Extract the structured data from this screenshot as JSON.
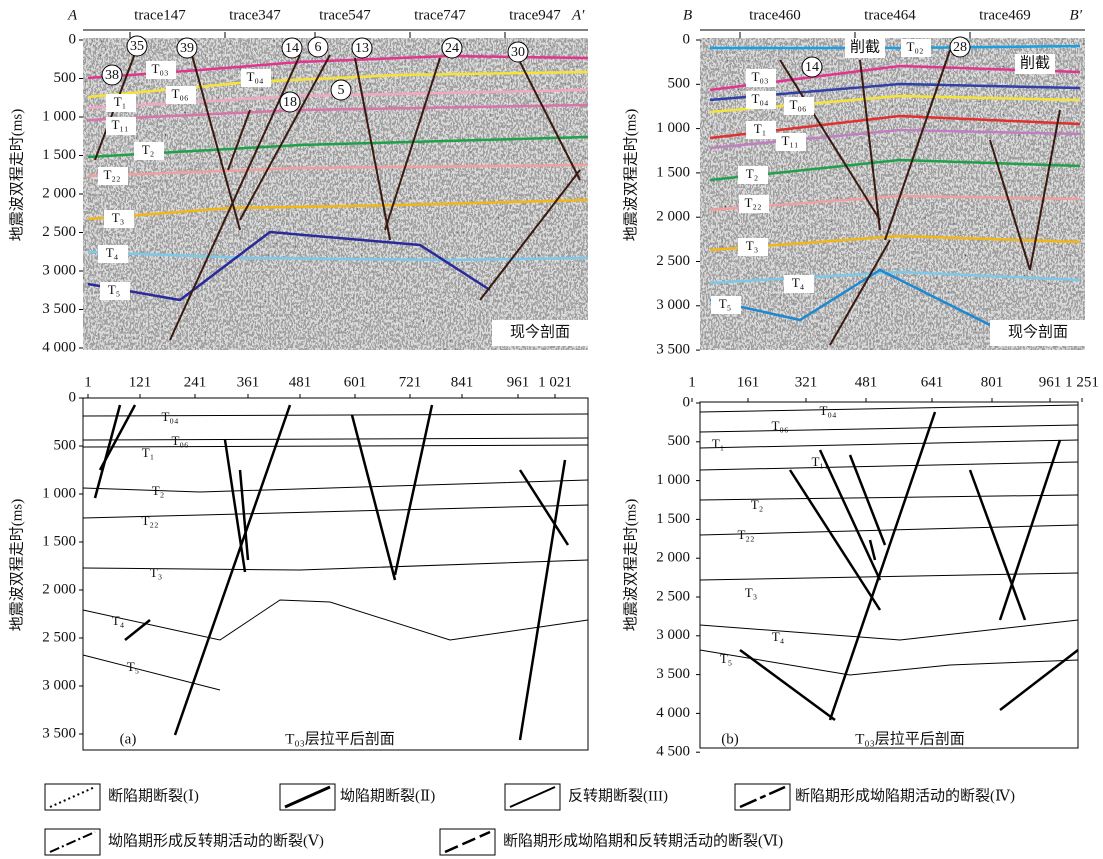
{
  "panel_a": {
    "header": [
      "A",
      "trace147",
      "trace347",
      "trace547",
      "trace747",
      "trace947",
      "A′"
    ],
    "y_axis_title": "地震波双程走时(ms)",
    "y_ticks": [
      "0",
      "500",
      "1 000",
      "1 500",
      "2 000",
      "2 500",
      "3 000",
      "3 500",
      "4 000"
    ],
    "horizons": [
      "T₀₃",
      "T₀₄",
      "T₀₆",
      "T₁",
      "T₁₁",
      "T₂",
      "T₂₂",
      "T₃",
      "T₄",
      "T₅"
    ],
    "faults": [
      "35",
      "39",
      "14",
      "6",
      "13",
      "24",
      "30",
      "38",
      "5",
      "18"
    ],
    "stamp": "现今剖面"
  },
  "panel_b": {
    "header": [
      "B",
      "trace460",
      "trace464",
      "trace469",
      "B′"
    ],
    "y_axis_title": "地震波双程走时(ms)",
    "y_ticks": [
      "0",
      "500",
      "1 000",
      "1 500",
      "2 000",
      "2 500",
      "3 000",
      "3 500"
    ],
    "horizons": [
      "T₀₂",
      "T₀₃",
      "T₀₄",
      "T₀₆",
      "T₁",
      "T₁₁",
      "T₂",
      "T₂₂",
      "T₃",
      "T₄",
      "T₅"
    ],
    "faults": [
      "14",
      "28"
    ],
    "notes": [
      "削截",
      "削截"
    ],
    "stamp": "现今剖面"
  },
  "panel_c": {
    "x_ticks": [
      "1",
      "121",
      "241",
      "361",
      "481",
      "601",
      "721",
      "841",
      "961",
      "1 021"
    ],
    "y_axis_title": "地震波双程走时(ms)",
    "y_ticks": [
      "0",
      "500",
      "1 000",
      "1 500",
      "2 000",
      "2 500",
      "3 000",
      "3 500"
    ],
    "horizons": [
      "T₀₄",
      "T₀₆",
      "T₁",
      "T₂",
      "T₂₂",
      "T₃",
      "T₄",
      "T₅"
    ],
    "label": "(a)",
    "caption": "T₀₃层拉平后剖面"
  },
  "panel_d": {
    "x_ticks": [
      "1",
      "161",
      "321",
      "481",
      "641",
      "801",
      "961",
      "1 251"
    ],
    "y_axis_title": "地震波双程走时(ms)",
    "y_ticks": [
      "0",
      "500",
      "1 000",
      "1 500",
      "2 000",
      "2 500",
      "3 000",
      "3 500",
      "4 000",
      "4 500"
    ],
    "horizons": [
      "T₀₄",
      "T₀₆",
      "T₁",
      "T₁₁",
      "T₂",
      "T₂₂",
      "T₃",
      "T₄",
      "T₅"
    ],
    "label": "(b)",
    "caption": "T₀₃层拉平后剖面"
  },
  "legend": [
    "断陷期断裂(Ⅰ)",
    "坳陷期断裂(Ⅱ)",
    "反转期断裂(III)",
    "断陷期形成坳陷期活动的断裂(Ⅳ)",
    "坳陷期形成反转期活动的断裂(Ⅴ)",
    "断陷期形成坳陷期和反转期活动的断裂(Ⅵ)"
  ]
}
